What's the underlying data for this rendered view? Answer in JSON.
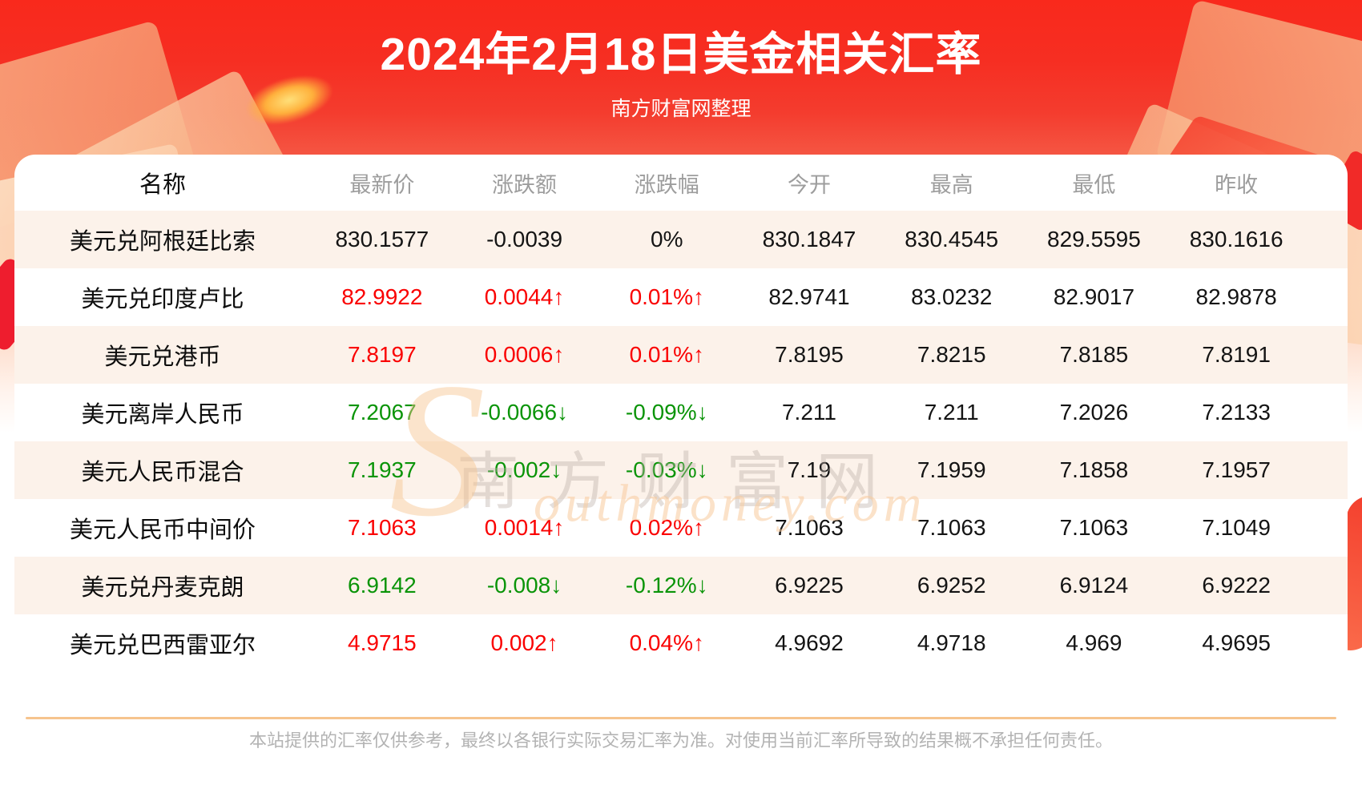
{
  "banner": {
    "title": "2024年2月18日美金相关汇率",
    "subtitle": "南方财富网整理"
  },
  "chart_data": {
    "type": "table",
    "title": "2024年2月18日美金相关汇率",
    "columns": [
      "名称",
      "最新价",
      "涨跌额",
      "涨跌幅",
      "今开",
      "最高",
      "最低",
      "昨收"
    ],
    "rows": [
      [
        "美元兑阿根廷比索",
        "830.1577",
        "-0.0039",
        "0%",
        "830.1847",
        "830.4545",
        "829.5595",
        "830.1616"
      ],
      [
        "美元兑印度卢比",
        "82.9922",
        "0.0044↑",
        "0.01%↑",
        "82.9741",
        "83.0232",
        "82.9017",
        "82.9878"
      ],
      [
        "美元兑港币",
        "7.8197",
        "0.0006↑",
        "0.01%↑",
        "7.8195",
        "7.8215",
        "7.8185",
        "7.8191"
      ],
      [
        "美元离岸人民币",
        "7.2067",
        "-0.0066↓",
        "-0.09%↓",
        "7.211",
        "7.211",
        "7.2026",
        "7.2133"
      ],
      [
        "美元人民币混合",
        "7.1937",
        "-0.002↓",
        "-0.03%↓",
        "7.19",
        "7.1959",
        "7.1858",
        "7.1957"
      ],
      [
        "美元人民币中间价",
        "7.1063",
        "0.0014↑",
        "0.02%↑",
        "7.1063",
        "7.1063",
        "7.1063",
        "7.1049"
      ],
      [
        "美元兑丹麦克朗",
        "6.9142",
        "-0.008↓",
        "-0.12%↓",
        "6.9225",
        "6.9252",
        "6.9124",
        "6.9222"
      ],
      [
        "美元兑巴西雷亚尔",
        "4.9715",
        "0.002↑",
        "0.04%↑",
        "4.9692",
        "4.9718",
        "4.969",
        "4.9695"
      ]
    ],
    "row_trends": [
      "flat",
      "up",
      "up",
      "down",
      "down",
      "up",
      "down",
      "up"
    ],
    "legend_position": "none",
    "grid": false
  },
  "watermark": {
    "cn": "南方财富网",
    "en_initial": "S",
    "en_rest": "outhmoney.com"
  },
  "footer": {
    "disclaimer": "本站提供的汇率仅供参考，最终以各银行实际交易汇率为准。对使用当前汇率所导致的结果概不承担任何责任。"
  },
  "colors": {
    "up_red": "#fa0000",
    "down_green": "#0a9408",
    "banner_red": "#f9291c",
    "row_stripe": "#fcf2ea",
    "divider_orange": "#f6c48e",
    "header_gray": "#9d9d9d"
  }
}
